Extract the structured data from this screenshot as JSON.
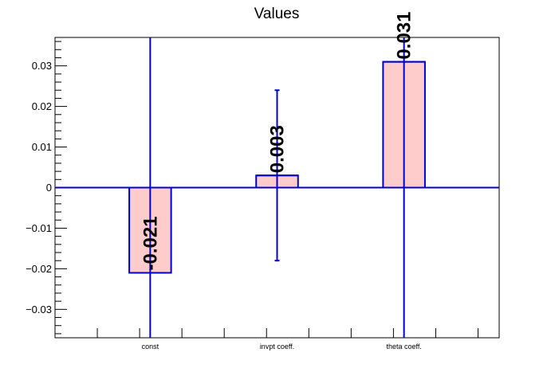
{
  "chart_data": {
    "type": "bar",
    "title": "Values",
    "xlabel": "",
    "ylabel": "",
    "categories": [
      "const",
      "invpt coeff.",
      "theta coeff."
    ],
    "values": [
      -0.021,
      0.003,
      0.031
    ],
    "value_labels": [
      "-0.021",
      "0.003",
      "0.031"
    ],
    "error_bars": [
      {
        "low": -0.037,
        "high": 0.037
      },
      {
        "low": -0.018,
        "high": 0.024
      },
      {
        "low": -0.037,
        "high": 0.037
      }
    ],
    "ylim": [
      -0.037,
      0.037
    ],
    "y_ticks": [
      -0.03,
      -0.02,
      -0.01,
      0,
      0.01,
      0.02,
      0.03
    ],
    "y_tick_labels": [
      "−0.03",
      "−0.02",
      "−0.01",
      "0",
      "0.01",
      "0.02",
      "0.03"
    ],
    "grid": false,
    "colors": {
      "bar_fill": "#ffcccc",
      "bar_stroke": "#0000cc",
      "error_bar": "#0000cc",
      "zero_line": "#0000cc"
    }
  }
}
